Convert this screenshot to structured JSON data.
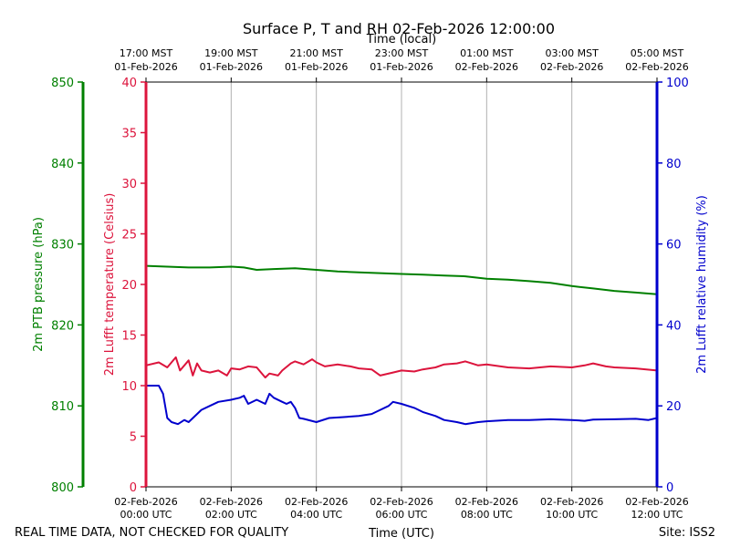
{
  "colors": {
    "pressure": "#008000",
    "temperature": "#dc143c",
    "humidity": "#0000cd",
    "grid": "#b0b0b0",
    "text": "#000000"
  },
  "chart_data": {
    "type": "line",
    "title": "Surface P, T and RH 02-Feb-2026 12:00:00",
    "xlabel_bottom": "Time (UTC)",
    "xlabel_top": "Time (local)",
    "x_range_hours": [
      0,
      12
    ],
    "bottom_ticks": [
      {
        "hour": 0,
        "line1": "02-Feb-2026",
        "line2": "00:00 UTC"
      },
      {
        "hour": 2,
        "line1": "02-Feb-2026",
        "line2": "02:00 UTC"
      },
      {
        "hour": 4,
        "line1": "02-Feb-2026",
        "line2": "04:00 UTC"
      },
      {
        "hour": 6,
        "line1": "02-Feb-2026",
        "line2": "06:00 UTC"
      },
      {
        "hour": 8,
        "line1": "02-Feb-2026",
        "line2": "08:00 UTC"
      },
      {
        "hour": 10,
        "line1": "02-Feb-2026",
        "line2": "10:00 UTC"
      },
      {
        "hour": 12,
        "line1": "02-Feb-2026",
        "line2": "12:00 UTC"
      }
    ],
    "top_ticks": [
      {
        "hour": 0,
        "line1": "17:00 MST",
        "line2": "01-Feb-2026"
      },
      {
        "hour": 2,
        "line1": "19:00 MST",
        "line2": "01-Feb-2026"
      },
      {
        "hour": 4,
        "line1": "21:00 MST",
        "line2": "01-Feb-2026"
      },
      {
        "hour": 6,
        "line1": "23:00 MST",
        "line2": "01-Feb-2026"
      },
      {
        "hour": 8,
        "line1": "01:00 MST",
        "line2": "02-Feb-2026"
      },
      {
        "hour": 10,
        "line1": "03:00 MST",
        "line2": "02-Feb-2026"
      },
      {
        "hour": 12,
        "line1": "05:00 MST",
        "line2": "02-Feb-2026"
      }
    ],
    "axes": {
      "pressure": {
        "label": "2m PTB pressure (hPa)",
        "range": [
          800,
          850
        ],
        "ticks": [
          800,
          810,
          820,
          830,
          840,
          850
        ]
      },
      "temperature": {
        "label": "2m Lufft temperature (Celsius)",
        "range": [
          0,
          40
        ],
        "ticks": [
          0,
          5,
          10,
          15,
          20,
          25,
          30,
          35,
          40
        ]
      },
      "humidity": {
        "label": "2m Lufft relative humidity (%)",
        "range": [
          0,
          100
        ],
        "ticks": [
          0,
          20,
          40,
          60,
          80,
          100
        ]
      }
    },
    "series": [
      {
        "name": "2m PTB pressure",
        "axis": "pressure",
        "x": [
          0,
          0.5,
          1,
          1.5,
          2,
          2.3,
          2.6,
          3,
          3.5,
          4,
          4.5,
          5,
          5.5,
          6,
          6.5,
          7,
          7.5,
          8,
          8.5,
          9,
          9.5,
          10,
          10.5,
          11,
          11.5,
          12
        ],
        "y": [
          827.3,
          827.2,
          827.1,
          827.1,
          827.2,
          827.1,
          826.8,
          826.9,
          827.0,
          826.8,
          826.6,
          826.5,
          826.4,
          826.3,
          826.2,
          826.1,
          826.0,
          825.7,
          825.6,
          825.4,
          825.2,
          824.8,
          824.5,
          824.2,
          824.0,
          823.8
        ]
      },
      {
        "name": "2m Lufft temperature",
        "axis": "temperature",
        "x": [
          0,
          0.3,
          0.5,
          0.7,
          0.8,
          1.0,
          1.1,
          1.2,
          1.3,
          1.5,
          1.7,
          1.9,
          2.0,
          2.2,
          2.4,
          2.6,
          2.8,
          2.9,
          3.1,
          3.2,
          3.4,
          3.5,
          3.7,
          3.9,
          4.0,
          4.2,
          4.5,
          4.8,
          5.0,
          5.3,
          5.5,
          5.8,
          6.0,
          6.3,
          6.5,
          6.8,
          7.0,
          7.3,
          7.5,
          7.8,
          8.0,
          8.5,
          9.0,
          9.5,
          10.0,
          10.3,
          10.5,
          10.8,
          11.0,
          11.5,
          12
        ],
        "y": [
          12.0,
          12.3,
          11.8,
          12.8,
          11.5,
          12.5,
          11.0,
          12.2,
          11.5,
          11.3,
          11.5,
          11.0,
          11.7,
          11.6,
          11.9,
          11.8,
          10.8,
          11.2,
          11.0,
          11.5,
          12.2,
          12.4,
          12.1,
          12.6,
          12.3,
          11.9,
          12.1,
          11.9,
          11.7,
          11.6,
          11.0,
          11.3,
          11.5,
          11.4,
          11.6,
          11.8,
          12.1,
          12.2,
          12.4,
          12.0,
          12.1,
          11.8,
          11.7,
          11.9,
          11.8,
          12.0,
          12.2,
          11.9,
          11.8,
          11.7,
          11.5
        ]
      },
      {
        "name": "2m Lufft relative humidity",
        "axis": "humidity",
        "x": [
          0,
          0.3,
          0.4,
          0.5,
          0.6,
          0.75,
          0.9,
          1.0,
          1.3,
          1.5,
          1.7,
          2.0,
          2.2,
          2.3,
          2.4,
          2.6,
          2.8,
          2.9,
          3.0,
          3.2,
          3.3,
          3.4,
          3.5,
          3.6,
          3.7,
          4.0,
          4.3,
          4.6,
          5.0,
          5.3,
          5.5,
          5.7,
          5.8,
          6.0,
          6.3,
          6.5,
          6.8,
          7.0,
          7.3,
          7.5,
          7.8,
          8.0,
          8.5,
          9.0,
          9.5,
          10.0,
          10.3,
          10.5,
          11.0,
          11.5,
          11.8,
          12
        ],
        "y": [
          25.0,
          25.0,
          23.0,
          17.0,
          16.0,
          15.5,
          16.5,
          16.0,
          19.0,
          20.0,
          21.0,
          21.5,
          22.0,
          22.5,
          20.5,
          21.5,
          20.5,
          23.0,
          22.0,
          21.0,
          20.5,
          21.0,
          19.5,
          17.0,
          16.8,
          16.0,
          17.0,
          17.2,
          17.5,
          18.0,
          19.0,
          20.0,
          21.0,
          20.5,
          19.5,
          18.5,
          17.5,
          16.5,
          16.0,
          15.5,
          16.0,
          16.2,
          16.5,
          16.5,
          16.7,
          16.5,
          16.3,
          16.6,
          16.7,
          16.8,
          16.5,
          17.0
        ]
      }
    ],
    "footer_left": "REAL TIME DATA, NOT CHECKED FOR QUALITY",
    "footer_right": "Site: ISS2"
  }
}
